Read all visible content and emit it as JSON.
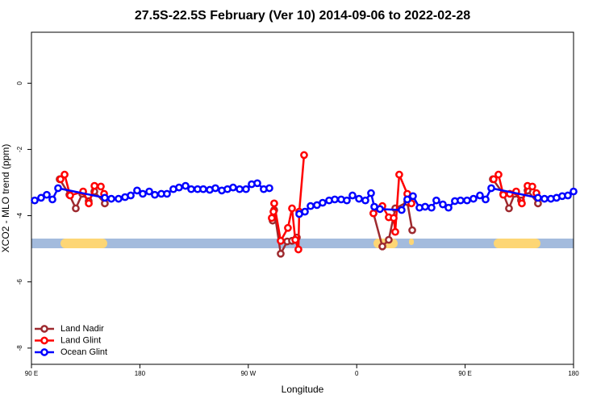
{
  "chart_data": {
    "type": "line",
    "title": "27.5S-22.5S February (Ver 10)   2014-09-06 to 2022-02-28",
    "x_label": "Longitude",
    "y_label": "XCO2 - MLO trend (ppm)",
    "xlim": [
      90,
      540
    ],
    "ylim": [
      -8.49,
      1.54
    ],
    "xticks": [
      {
        "value": 90,
        "label": "90 E"
      },
      {
        "value": 180,
        "label": "180"
      },
      {
        "value": 270,
        "label": "90 W"
      },
      {
        "value": 360,
        "label": "0"
      },
      {
        "value": 450,
        "label": "90 E"
      },
      {
        "value": 540,
        "label": "180"
      }
    ],
    "yticks": [
      -8,
      -6,
      -4,
      -2,
      0
    ],
    "legend": "bottomleft",
    "series": [
      {
        "name": "Land Nadir",
        "color": "#9e2a2f",
        "x": [
          113.4,
          121.5,
          126.8,
          132.2,
          137.5,
          142.2,
          150.9,
          null,
          290.2,
          291.5,
          296.9,
          302.3,
          306.3,
          310.3,
          null,
          373.9,
          381.3,
          386.6,
          392.0,
          402.0,
          406.1,
          null,
          473.0,
          481.7,
          486.4,
          491.1,
          496.4,
          501.8,
          510.5
        ],
        "values": [
          -2.9,
          -3.37,
          -3.78,
          -3.34,
          -3.56,
          -3.27,
          -3.63,
          null,
          -4.15,
          -3.83,
          -5.15,
          -4.78,
          -4.76,
          -4.66,
          null,
          -3.93,
          -4.93,
          -4.73,
          -3.78,
          -3.59,
          -4.44,
          null,
          -2.9,
          -3.34,
          -3.78,
          -3.34,
          -3.54,
          -3.24,
          -3.63
        ]
      },
      {
        "name": "Land Glint",
        "color": "#ff0000",
        "x": [
          114.1,
          117.5,
          122.1,
          132.9,
          137.6,
          142.3,
          147.6,
          150.3,
          null,
          289.5,
          290.9,
          291.5,
          296.9,
          302.9,
          306.3,
          309.0,
          311.6,
          312.3,
          316.3,
          null,
          373.9,
          381.3,
          386.6,
          390.7,
          392.0,
          395.3,
          402.0,
          405.4,
          null,
          473.7,
          477.7,
          481.7,
          487.1,
          492.4,
          497.1,
          501.8,
          505.8,
          509.2
        ],
        "values": [
          -2.9,
          -2.76,
          -3.39,
          -3.27,
          -3.63,
          -3.1,
          -3.12,
          -3.34,
          null,
          -4.07,
          -3.88,
          -3.63,
          -4.76,
          -4.37,
          -3.78,
          -4.73,
          -5.02,
          -3.88,
          -2.17,
          null,
          -3.93,
          -3.71,
          -4.05,
          -4.07,
          -4.49,
          -2.76,
          -3.34,
          -3.63,
          null,
          -2.9,
          -2.76,
          -3.37,
          -3.34,
          -3.27,
          -3.63,
          -3.1,
          -3.12,
          -3.32
        ]
      },
      {
        "name": "Ocean Glint",
        "color": "#0000ff",
        "x": [
          92.7,
          98.0,
          102.7,
          107.4,
          112.1,
          150.9,
          156.3,
          162.3,
          167.7,
          172.4,
          177.7,
          182.4,
          187.8,
          192.4,
          197.8,
          202.5,
          207.8,
          212.5,
          217.9,
          222.6,
          227.9,
          232.6,
          238.0,
          242.7,
          248.0,
          252.7,
          257.4,
          262.8,
          268.1,
          272.8,
          277.5,
          282.8,
          287.5,
          null,
          312.3,
          317.0,
          321.7,
          327.0,
          331.7,
          337.1,
          341.8,
          347.1,
          351.8,
          356.5,
          361.9,
          367.2,
          371.9,
          374.6,
          379.3,
          397.3,
          402.0,
          406.7,
          412.1,
          416.8,
          422.1,
          426.1,
          431.5,
          436.2,
          441.5,
          446.2,
          451.6,
          456.9,
          462.3,
          467.0,
          471.7,
          510.5,
          515.9,
          521.2,
          525.9,
          530.6,
          535.3,
          540
        ],
        "values": [
          -3.54,
          -3.46,
          -3.37,
          -3.51,
          -3.17,
          -3.46,
          -3.49,
          -3.49,
          -3.44,
          -3.39,
          -3.24,
          -3.34,
          -3.27,
          -3.37,
          -3.34,
          -3.34,
          -3.2,
          -3.15,
          -3.1,
          -3.2,
          -3.2,
          -3.2,
          -3.22,
          -3.17,
          -3.24,
          -3.2,
          -3.15,
          -3.2,
          -3.2,
          -3.05,
          -3.02,
          -3.2,
          -3.17,
          null,
          -3.95,
          -3.88,
          -3.71,
          -3.68,
          -3.61,
          -3.54,
          -3.51,
          -3.51,
          -3.54,
          -3.39,
          -3.49,
          -3.54,
          -3.32,
          -3.73,
          -3.8,
          -3.83,
          -3.51,
          -3.41,
          -3.76,
          -3.73,
          -3.76,
          -3.54,
          -3.66,
          -3.76,
          -3.56,
          -3.54,
          -3.54,
          -3.49,
          -3.39,
          -3.51,
          -3.17,
          -3.46,
          -3.49,
          -3.49,
          -3.46,
          -3.41,
          -3.39,
          -3.27
        ]
      }
    ]
  }
}
